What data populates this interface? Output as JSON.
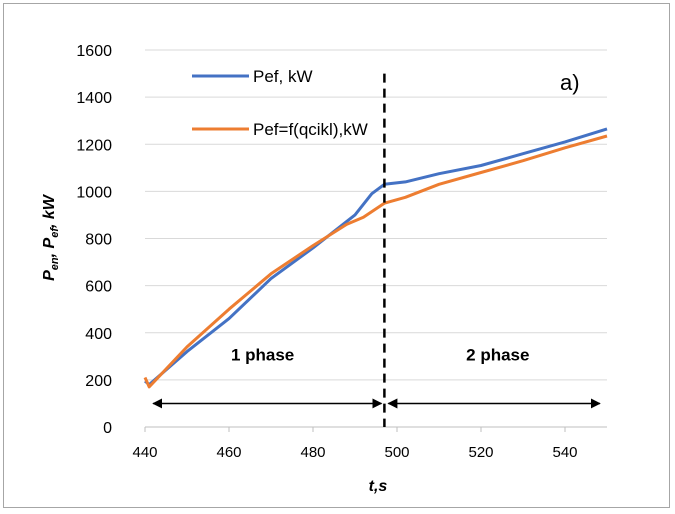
{
  "chart_data": {
    "type": "line",
    "title": "",
    "panel_label": "a)",
    "xlabel": "t,s",
    "ylabel": {
      "parts": [
        {
          "text": "P",
          "sub": false
        },
        {
          "text": "en",
          "sub": true
        },
        {
          "text": ", P",
          "sub": false
        },
        {
          "text": "ef",
          "sub": true
        },
        {
          "text": ", kW",
          "sub": false
        }
      ]
    },
    "xlim": [
      440,
      550
    ],
    "ylim": [
      0,
      1600
    ],
    "xticks": [
      "440",
      "460",
      "480",
      "500",
      "520",
      "540"
    ],
    "xtick_values": [
      440,
      460,
      480,
      500,
      520,
      540
    ],
    "yticks": [
      "0",
      "200",
      "400",
      "600",
      "800",
      "1000",
      "1200",
      "1400",
      "1600"
    ],
    "ytick_values": [
      0,
      200,
      400,
      600,
      800,
      1000,
      1200,
      1400,
      1600
    ],
    "grid": "horizontal",
    "legend_position": "top-left",
    "series": [
      {
        "name": "Pef, kW",
        "color": "#4472c4",
        "points": [
          [
            440,
            195
          ],
          [
            441,
            180
          ],
          [
            450,
            320
          ],
          [
            460,
            460
          ],
          [
            470,
            630
          ],
          [
            480,
            760
          ],
          [
            490,
            900
          ],
          [
            494,
            990
          ],
          [
            497,
            1030
          ],
          [
            502,
            1040
          ],
          [
            510,
            1075
          ],
          [
            520,
            1110
          ],
          [
            530,
            1160
          ],
          [
            540,
            1210
          ],
          [
            550,
            1265
          ]
        ]
      },
      {
        "name": "Pef=f(qcikl),kW",
        "color": "#ed7d31",
        "points": [
          [
            440,
            210
          ],
          [
            441,
            170
          ],
          [
            450,
            340
          ],
          [
            460,
            500
          ],
          [
            470,
            650
          ],
          [
            480,
            770
          ],
          [
            488,
            860
          ],
          [
            492,
            890
          ],
          [
            497,
            950
          ],
          [
            502,
            975
          ],
          [
            510,
            1030
          ],
          [
            520,
            1080
          ],
          [
            530,
            1130
          ],
          [
            540,
            1185
          ],
          [
            550,
            1235
          ]
        ]
      }
    ],
    "phase_divider": {
      "x": 497,
      "color": "#000000"
    },
    "annotations": [
      {
        "id": "phase1",
        "text": "1 phase",
        "x": 468,
        "y": 295
      },
      {
        "id": "phase2",
        "text": "2 phase",
        "x": 524,
        "y": 295
      }
    ],
    "arrows": [
      {
        "id": "phase1-arrow",
        "from": [
          441,
          100
        ],
        "to": [
          497,
          100
        ]
      },
      {
        "id": "phase2-arrow",
        "from": [
          497,
          100
        ],
        "to": [
          549,
          100
        ]
      }
    ]
  }
}
